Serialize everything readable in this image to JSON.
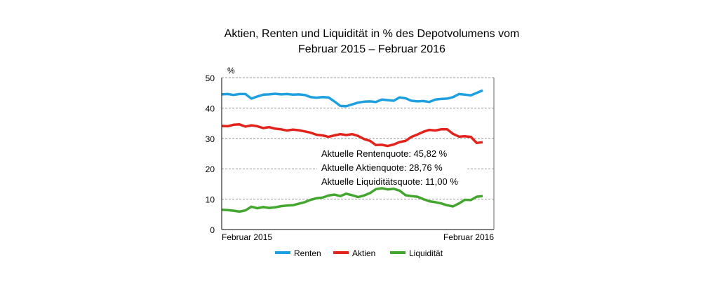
{
  "chart_data": {
    "type": "line",
    "title_line1": "Aktien, Renten und Liquidität in % des Depotvolumens vom",
    "title_line2": "Februar 2015 – Februar 2016",
    "ylabel": "%",
    "ylim": [
      0,
      50
    ],
    "yticks": [
      "0",
      "10",
      "20",
      "30",
      "40",
      "50"
    ],
    "x_start_label": "Februar 2015",
    "x_end_label": "Februar 2016",
    "grid": "horizontal dashed",
    "legend_position": "bottom",
    "series": [
      {
        "name": "Renten",
        "color": "#1ea0e0",
        "values": [
          44.5,
          44.6,
          44.3,
          44.6,
          44.6,
          43.1,
          43.8,
          44.4,
          44.5,
          44.7,
          44.5,
          44.6,
          44.4,
          44.5,
          44.3,
          43.6,
          43.4,
          43.6,
          43.5,
          42.2,
          40.7,
          40.6,
          41.2,
          41.8,
          42.1,
          42.2,
          42.0,
          42.8,
          42.6,
          42.4,
          43.5,
          43.2,
          42.4,
          42.2,
          42.3,
          42.0,
          42.8,
          43.0,
          43.1,
          43.6,
          44.6,
          44.4,
          44.2,
          45.0,
          45.82
        ]
      },
      {
        "name": "Aktien",
        "color": "#e3231b",
        "values": [
          34.1,
          34.0,
          34.5,
          34.6,
          33.9,
          34.3,
          34.0,
          33.4,
          33.7,
          33.2,
          33.0,
          32.6,
          32.9,
          32.7,
          32.3,
          31.9,
          31.2,
          31.0,
          30.5,
          31.0,
          31.4,
          31.1,
          31.4,
          30.8,
          29.8,
          29.2,
          27.8,
          27.9,
          27.5,
          28.0,
          28.8,
          29.2,
          30.5,
          31.3,
          32.2,
          32.8,
          32.6,
          33.0,
          33.0,
          31.5,
          30.6,
          30.7,
          30.5,
          28.5,
          28.76
        ]
      },
      {
        "name": "Liquidität",
        "color": "#43a62f",
        "values": [
          6.5,
          6.4,
          6.2,
          5.9,
          6.3,
          7.5,
          7.0,
          7.4,
          7.1,
          7.3,
          7.7,
          7.9,
          8.0,
          8.5,
          9.0,
          9.8,
          10.3,
          10.5,
          11.2,
          11.5,
          11.0,
          11.8,
          11.3,
          10.7,
          11.2,
          12.0,
          13.3,
          13.6,
          13.2,
          13.4,
          12.8,
          11.3,
          11.0,
          10.8,
          10.0,
          9.3,
          9.0,
          8.6,
          8.0,
          7.6,
          8.6,
          9.8,
          9.7,
          10.8,
          11.0
        ]
      }
    ],
    "annotations": [
      "Aktuelle Rentenquote: 45,82 %",
      "Aktuelle Aktienquote: 28,76 %",
      "Aktuelle Liquiditätsquote: 11,00 %"
    ]
  }
}
